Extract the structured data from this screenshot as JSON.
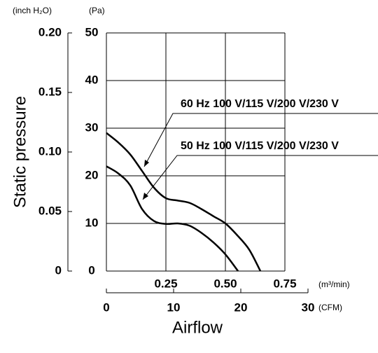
{
  "chart_data": {
    "type": "line",
    "y_label": "Static pressure",
    "x_label": "Airflow",
    "y_unit": "(Pa)",
    "y2_unit": "(inch H₂O)",
    "x_unit": "(m³/min)",
    "x2_unit": "(CFM)",
    "xlim": [
      0,
      0.75
    ],
    "xticks": [
      0.25,
      {
        "value": 0.5,
        "label": "0.50"
      },
      0.75
    ],
    "x2lim": [
      0,
      30
    ],
    "x2ticks": [
      0,
      10,
      20,
      30
    ],
    "ylim": [
      0,
      50
    ],
    "yticks": [
      0,
      10,
      20,
      30,
      40,
      50
    ],
    "y2lim": [
      0,
      0.2
    ],
    "y2ticks": [
      0,
      0.05,
      {
        "value": 0.1,
        "label": "0.10"
      },
      0.15,
      {
        "value": 0.2,
        "label": "0.20"
      }
    ],
    "grid": true,
    "series": [
      {
        "name": "60 Hz 100 V/115 V/200 V/230 V",
        "color": "#000000",
        "x": [
          0,
          0.05,
          0.1,
          0.15,
          0.2,
          0.25,
          0.3,
          0.35,
          0.4,
          0.45,
          0.5,
          0.55,
          0.6,
          0.647
        ],
        "values": [
          29,
          27,
          24.5,
          21,
          17.5,
          15.3,
          14.8,
          14.3,
          13,
          11.5,
          10,
          7.5,
          4.5,
          0
        ]
      },
      {
        "name": "50 Hz 100 V/115 V/200 V/230 V",
        "color": "#000000",
        "x": [
          0,
          0.05,
          0.1,
          0.15,
          0.2,
          0.25,
          0.3,
          0.35,
          0.4,
          0.45,
          0.5,
          0.553
        ],
        "values": [
          22,
          20.5,
          18,
          13,
          10.5,
          9.9,
          10,
          9.5,
          8,
          6,
          3.5,
          0
        ]
      }
    ]
  }
}
